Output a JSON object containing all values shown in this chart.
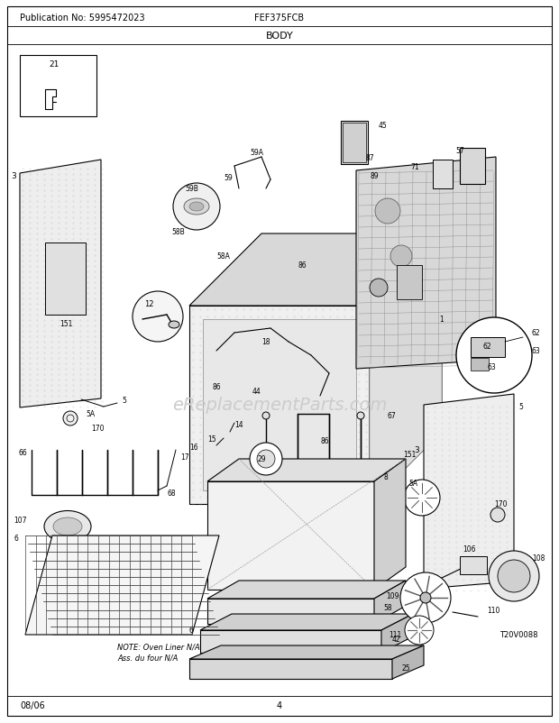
{
  "publication_no": "Publication No: 5995472023",
  "model": "FEF375FCB",
  "section": "BODY",
  "date": "08/06",
  "page": "4",
  "watermark": "eReplacementParts.com",
  "bg_color": "#ffffff",
  "text_color": "#000000",
  "line_color": "#000000",
  "gray1": "#c8c8c8",
  "gray2": "#b0b0b0",
  "gray3": "#e0e0e0",
  "gray4": "#909090",
  "figsize": [
    6.2,
    8.03
  ],
  "dpi": 100
}
